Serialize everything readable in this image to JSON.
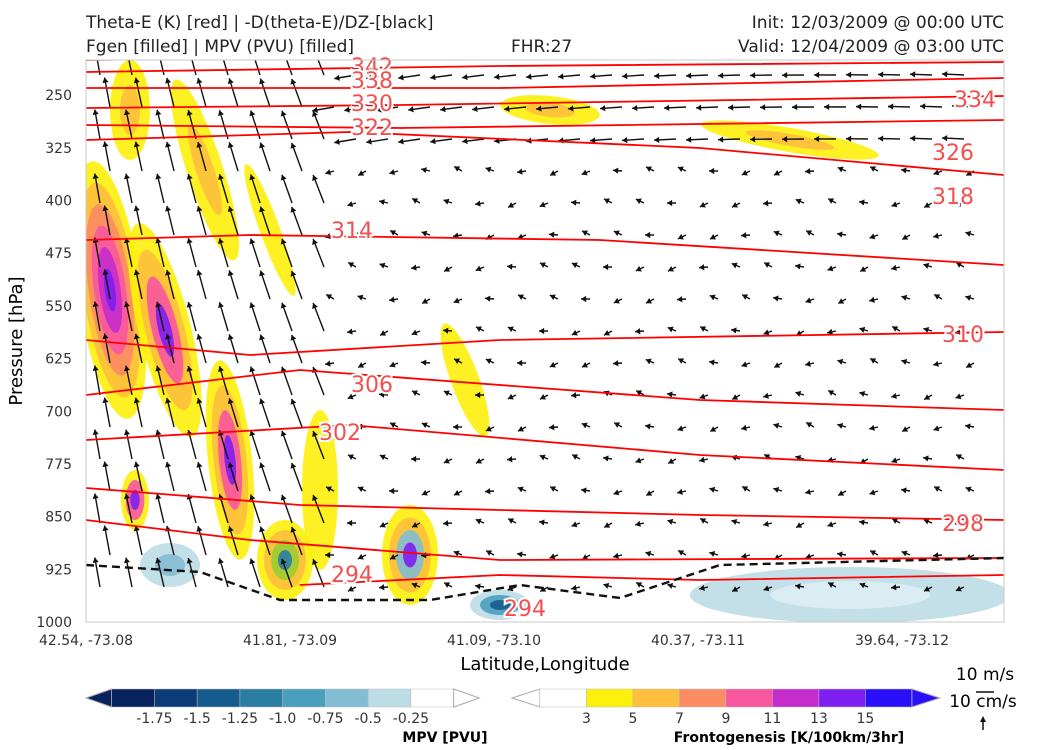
{
  "header": {
    "left_line1": "Theta-E (K) [red] | -D(theta-E)/DZ-[black]",
    "left_line2": "Fgen [filled] | MPV (PVU) [filled]",
    "center": "FHR:27",
    "right_line1": "Init: 12/03/2009 @ 00:00 UTC",
    "right_line2": "Valid: 12/04/2009 @ 03:00 UTC"
  },
  "chart_data": {
    "type": "cross-section",
    "xlabel": "Latitude,Longitude",
    "ylabel": "Pressure [hPa]",
    "x_ticks": [
      "42.54, -73.08",
      "41.81, -73.09",
      "41.09, -73.10",
      "40.37, -73.11",
      "39.64, -73.12"
    ],
    "y_ticks": [
      250,
      325,
      400,
      475,
      550,
      625,
      700,
      775,
      850,
      925,
      1000
    ],
    "ylim": [
      1000,
      200
    ],
    "theta_e_labels": [
      "342",
      "338",
      "330",
      "322",
      "334",
      "326",
      "318",
      "314",
      "310",
      "306",
      "302",
      "298",
      "294",
      "294"
    ],
    "theta_e_color": "#ff0000",
    "mpv_colorbar": {
      "label": "MPV [PVU]",
      "ticks": [
        "-1.75",
        "-1.5",
        "-1.25",
        "-1.0",
        "-0.75",
        "-0.5",
        "-0.25"
      ],
      "colors": [
        "#08215f",
        "#0c3c78",
        "#165b8e",
        "#2b7da4",
        "#4a9fbe",
        "#83bdd4",
        "#bcdce6",
        "#ffffff"
      ]
    },
    "fgen_colorbar": {
      "label": "Frontogenesis [K/100km/3hr]",
      "ticks": [
        "3",
        "5",
        "7",
        "9",
        "11",
        "13",
        "15"
      ],
      "colors": [
        "#ffffff",
        "#fdf00c",
        "#fdbf3c",
        "#fc8c64",
        "#f857a0",
        "#c52ccc",
        "#7d1ff0",
        "#2a10fa"
      ]
    },
    "vector_key": {
      "horizontal": "10 m/s",
      "vertical": "10 cm/s"
    }
  }
}
